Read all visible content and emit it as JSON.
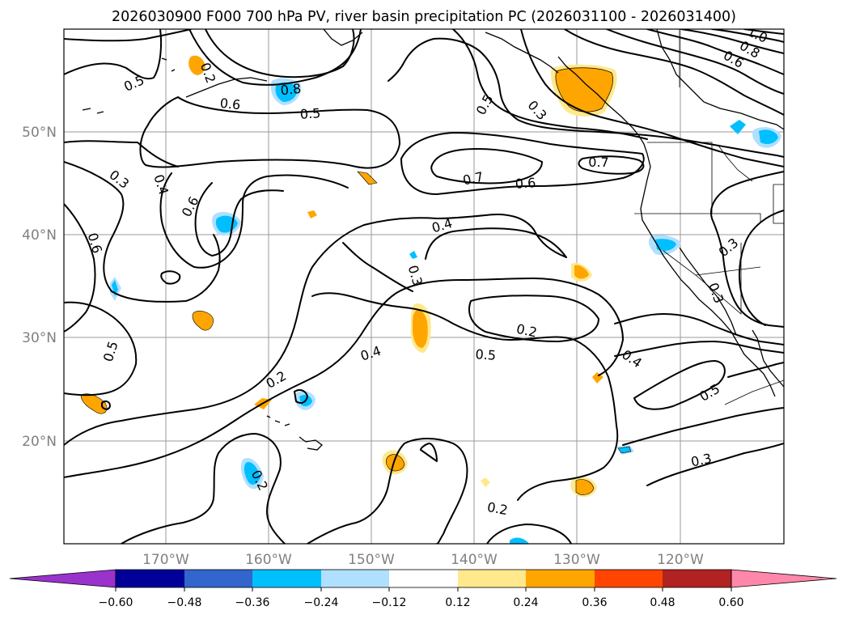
{
  "title": "2026030900 F000 700 hPa PV, river basin precipitation PC (2026031100 - 2026031400)",
  "map": {
    "lat_labels": [
      "50°N",
      "40°N",
      "30°N",
      "20°N"
    ],
    "lon_labels": [
      "170°W",
      "160°W",
      "150°W",
      "140°W",
      "130°W",
      "120°W"
    ]
  },
  "contour_labels": [
    "0.5",
    "0.6",
    "0.8",
    "0.5",
    "0.3",
    "0.4",
    "0.6",
    "0.6",
    "0.5",
    "0.3",
    "0.7",
    "0.6",
    "0.7",
    "0.4",
    "0.3",
    "0.2",
    "0.5",
    "0.4",
    "0.5",
    "0.2",
    "0.2",
    "0.4",
    "0.5",
    "0.3",
    "0.3",
    "0.3",
    "0.2",
    "0.2",
    "0.8",
    "0.6",
    "1.0"
  ],
  "colorbar": {
    "colors": [
      "#9933cc",
      "#000099",
      "#3366cc",
      "#00bfff",
      "#b0e0ff",
      "#ffffff",
      "#ffe98c",
      "#ffa500",
      "#ff4500",
      "#b22222",
      "#ff88aa"
    ],
    "ticks": [
      "−0.60",
      "−0.48",
      "−0.36",
      "−0.24",
      "−0.12",
      "0.12",
      "0.24",
      "0.36",
      "0.48",
      "0.60"
    ]
  }
}
